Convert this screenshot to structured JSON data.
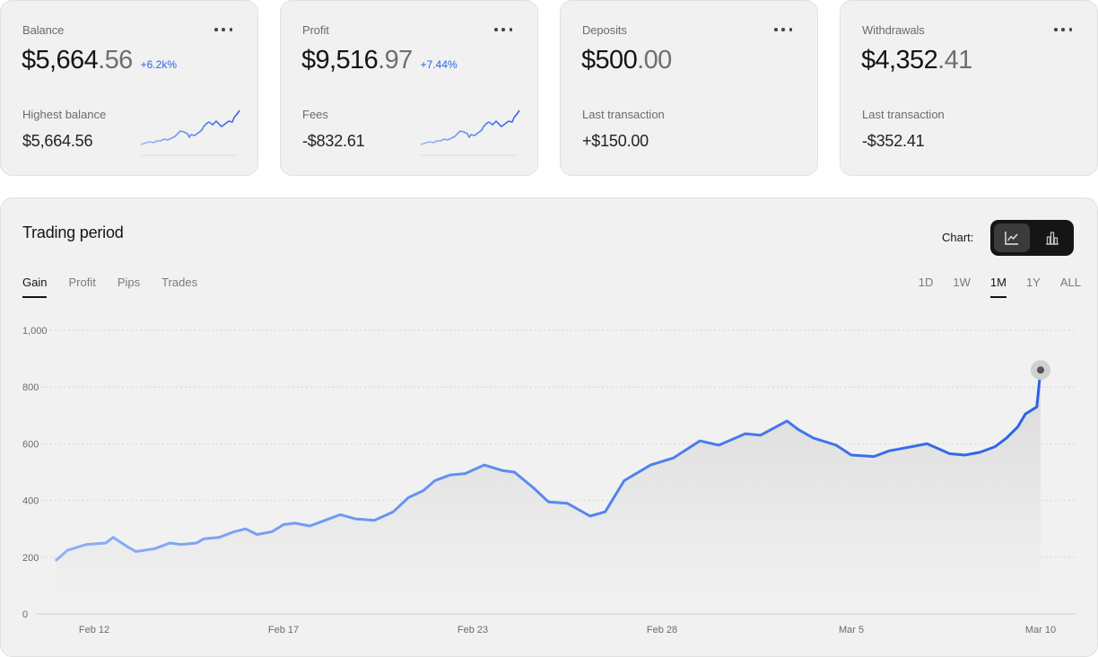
{
  "cards": [
    {
      "label": "Balance",
      "value_int": "$5,664",
      "value_dec": ".56",
      "change": "+6.2k%",
      "sub_label": "Highest balance",
      "sub_value": "$5,664.56",
      "has_sparkline": true
    },
    {
      "label": "Profit",
      "value_int": "$9,516",
      "value_dec": ".97",
      "change": "+7.44%",
      "sub_label": "Fees",
      "sub_value": "-$832.61",
      "has_sparkline": true
    },
    {
      "label": "Deposits",
      "value_int": "$500",
      "value_dec": ".00",
      "change": "",
      "sub_label": "Last transaction",
      "sub_value": "+$150.00",
      "has_sparkline": false
    },
    {
      "label": "Withdrawals",
      "value_int": "$4,352",
      "value_dec": ".41",
      "change": "",
      "sub_label": "Last transaction",
      "sub_value": "-$352.41",
      "has_sparkline": false
    }
  ],
  "main": {
    "title": "Trading period",
    "chart_label": "Chart:",
    "chart_types": [
      {
        "icon": "line-chart-icon",
        "active": true
      },
      {
        "icon": "bar-chart-icon",
        "active": false
      }
    ],
    "tabs": [
      "Gain",
      "Profit",
      "Pips",
      "Trades"
    ],
    "active_tab": "Gain",
    "ranges": [
      "1D",
      "1W",
      "1M",
      "1Y",
      "ALL"
    ],
    "active_range": "1M"
  },
  "colors": {
    "accent": "#2a62e8",
    "accent_light": "#8fb0f5",
    "card_bg": "#f1f1f1",
    "dark_toggle": "#151515"
  },
  "chart_data": {
    "type": "line",
    "title": "",
    "xlabel": "",
    "ylabel": "",
    "ylim": [
      0,
      1000
    ],
    "yticks": [
      0,
      200,
      400,
      600,
      800,
      1000
    ],
    "ytick_labels": [
      "0",
      "200",
      "400",
      "600",
      "800",
      "1,000"
    ],
    "xtick_labels": [
      "Feb 12",
      "Feb 17",
      "Feb 23",
      "Feb 28",
      "Mar 5",
      "Mar 10"
    ],
    "xtick_dates": [
      0,
      5,
      10,
      15,
      20,
      25
    ],
    "grid": true,
    "series": [
      {
        "x": [
          -1.0,
          -0.7,
          -0.2,
          0.3,
          0.5,
          0.9,
          1.1,
          1.6,
          2.0,
          2.3,
          2.7,
          2.9,
          3.3,
          3.7,
          4.0,
          4.3,
          4.7,
          5.0,
          5.3,
          5.7,
          6.1,
          6.5,
          6.9,
          7.4,
          7.9,
          8.3,
          8.7,
          9.0,
          9.4,
          9.8,
          10.3,
          10.8,
          11.1,
          11.6,
          12.0,
          12.5,
          13.1,
          13.5,
          14.0,
          14.7,
          15.3,
          16.0,
          16.5,
          17.2,
          17.6,
          18.3,
          18.6,
          19.0,
          19.6,
          20.0,
          20.6,
          21.0,
          21.6,
          22.0,
          22.6,
          23.0,
          23.4,
          23.8,
          24.1,
          24.4,
          24.6,
          24.9,
          25.0
        ],
        "y": [
          190,
          225,
          245,
          250,
          270,
          235,
          220,
          230,
          250,
          245,
          250,
          265,
          270,
          290,
          300,
          280,
          290,
          315,
          320,
          310,
          330,
          350,
          335,
          330,
          360,
          410,
          435,
          470,
          490,
          495,
          525,
          505,
          500,
          445,
          395,
          390,
          345,
          360,
          470,
          525,
          550,
          610,
          595,
          635,
          630,
          680,
          650,
          620,
          595,
          560,
          555,
          575,
          590,
          600,
          565,
          560,
          570,
          590,
          620,
          660,
          705,
          730,
          860
        ]
      }
    ],
    "end_marker": {
      "x": 25.0,
      "y": 860
    }
  }
}
